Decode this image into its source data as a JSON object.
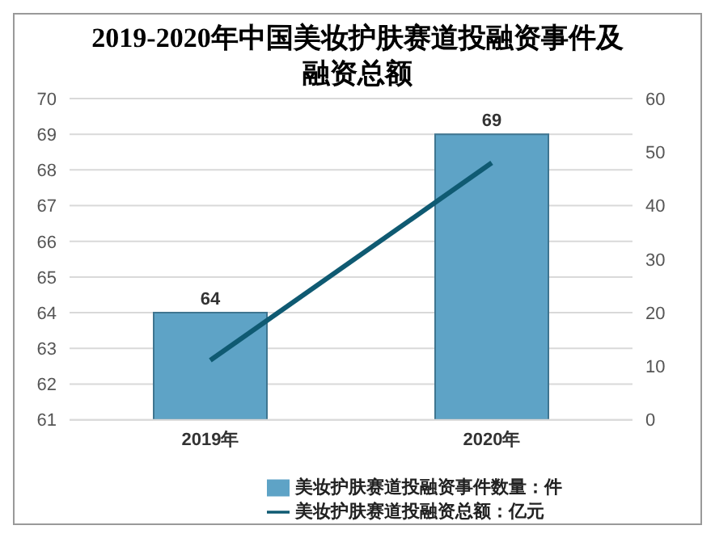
{
  "chart_data": {
    "type": "bar",
    "title": "2019-2020年中国美妆护肤赛道投融资事件及融资总额",
    "categories": [
      "2019年",
      "2020年"
    ],
    "series": [
      {
        "name": "美妆护肤赛道投融资事件数量：件",
        "color": "#5ea3c6",
        "values": [
          64,
          69
        ],
        "data_labels": true
      },
      {
        "name": "美妆护肤赛道投融资总额：亿元",
        "type": "line",
        "axis": "y2",
        "color": "#0f5a72",
        "values": [
          11.1,
          48
        ]
      }
    ],
    "ylim": [
      61,
      70
    ],
    "yticks": [
      61,
      62,
      63,
      64,
      65,
      66,
      67,
      68,
      69,
      70
    ],
    "y2lim": [
      0,
      60
    ],
    "y2ticks": [
      0,
      10,
      20,
      30,
      40,
      50,
      60
    ],
    "grid": "y",
    "legend": "bottom",
    "marker": "none"
  }
}
